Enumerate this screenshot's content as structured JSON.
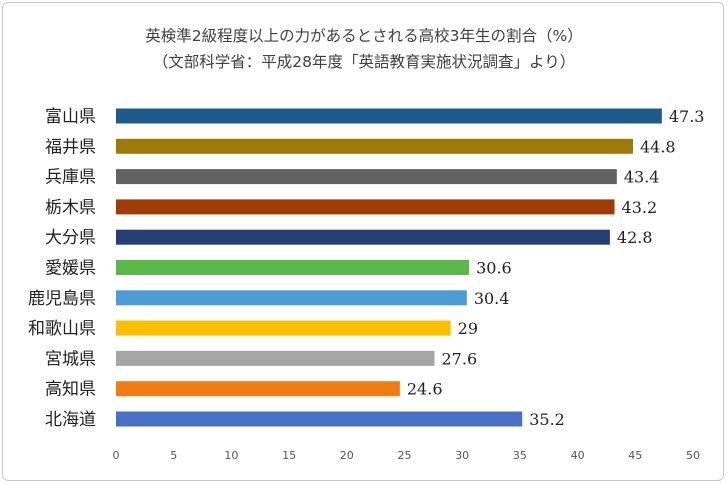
{
  "chart_data": {
    "type": "bar",
    "orientation": "horizontal",
    "title": "英検準2級程度以上の力があるとされる高校3年生の割合（%）",
    "subtitle": "（文部科学省：平成28年度「英語教育実施状況調査」より）",
    "categories": [
      "富山県",
      "福井県",
      "兵庫県",
      "栃木県",
      "大分県",
      "愛媛県",
      "鹿児島県",
      "和歌山県",
      "宮城県",
      "高知県",
      "北海道"
    ],
    "values": [
      47.3,
      44.8,
      43.4,
      43.2,
      42.8,
      30.6,
      30.4,
      29,
      27.6,
      24.6,
      35.2
    ],
    "value_labels": [
      "47.3",
      "44.8",
      "43.4",
      "43.2",
      "42.8",
      "30.6",
      "30.4",
      "29",
      "27.6",
      "24.6",
      "35.2"
    ],
    "colors": [
      "#1f5a8c",
      "#9e7a0a",
      "#636363",
      "#a03c06",
      "#253f72",
      "#5ab946",
      "#4e9bd6",
      "#fcc000",
      "#a5a5a5",
      "#f07d14",
      "#4771c5"
    ],
    "x_ticks": [
      "0",
      "5",
      "10",
      "15",
      "20",
      "25",
      "30",
      "35",
      "40",
      "45",
      "50"
    ],
    "xlim": [
      0,
      50
    ],
    "xlabel": "",
    "ylabel": "",
    "grid": false,
    "legend": "none"
  }
}
